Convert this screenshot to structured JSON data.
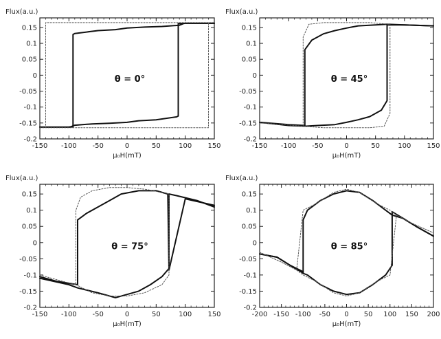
{
  "chart_data": [
    {
      "type": "line",
      "ylabel": "Flux(a.u.)",
      "xlabel": "μ₀H(mT)",
      "annotation": "θ = 0°",
      "xlim": [
        -150,
        150
      ],
      "ylim": [
        -0.2,
        0.18
      ],
      "xticks": [
        -150,
        -100,
        -50,
        0,
        50,
        100,
        150
      ],
      "yticks": [
        0.15,
        0.1,
        0.05,
        0,
        -0.05,
        -0.1,
        -0.15,
        -0.2
      ],
      "series": [
        {
          "style": "solid",
          "x": [
            -150,
            -100,
            -93,
            -93,
            -90,
            -50,
            -20,
            0,
            30,
            60,
            90,
            97,
            100,
            150
          ],
          "y": [
            -0.163,
            -0.163,
            -0.162,
            0.128,
            0.131,
            0.14,
            0.143,
            0.148,
            0.151,
            0.153,
            0.157,
            0.162,
            0.163,
            0.163
          ]
        },
        {
          "style": "solid",
          "x": [
            150,
            100,
            88,
            88,
            85,
            50,
            20,
            0,
            -30,
            -60,
            -90,
            -97,
            -100,
            -150
          ],
          "y": [
            0.163,
            0.163,
            0.162,
            -0.128,
            -0.131,
            -0.14,
            -0.143,
            -0.148,
            -0.151,
            -0.153,
            -0.157,
            -0.162,
            -0.163,
            -0.163
          ]
        },
        {
          "style": "dotted",
          "x": [
            -150,
            -140,
            -140,
            150,
            150,
            140,
            140,
            -150
          ],
          "y": [
            -0.165,
            -0.165,
            0.165,
            0.165,
            0.165,
            0.165,
            -0.165,
            -0.165
          ]
        }
      ]
    },
    {
      "type": "line",
      "ylabel": "Flux(a.u.)",
      "xlabel": "μ₀H(mT)",
      "annotation": "θ = 45°",
      "xlim": [
        -150,
        150
      ],
      "ylim": [
        -0.2,
        0.18
      ],
      "xticks": [
        -150,
        -100,
        -50,
        0,
        50,
        100,
        150
      ],
      "yticks": [
        0.15,
        0.1,
        0.05,
        0,
        -0.05,
        -0.1,
        -0.15,
        -0.2
      ],
      "series": [
        {
          "style": "solid",
          "x": [
            -150,
            -100,
            -72,
            -72,
            -60,
            -40,
            -20,
            0,
            20,
            50,
            70,
            100,
            150
          ],
          "y": [
            -0.148,
            -0.155,
            -0.158,
            0.08,
            0.11,
            0.13,
            0.14,
            0.148,
            0.155,
            0.158,
            0.16,
            0.158,
            0.155
          ]
        },
        {
          "style": "solid",
          "x": [
            150,
            100,
            70,
            70,
            60,
            40,
            20,
            0,
            -20,
            -50,
            -70,
            -100,
            -150
          ],
          "y": [
            0.155,
            0.158,
            0.158,
            -0.08,
            -0.11,
            -0.13,
            -0.14,
            -0.148,
            -0.155,
            -0.158,
            -0.16,
            -0.158,
            -0.148
          ]
        },
        {
          "style": "dotted",
          "x": [
            -150,
            -90,
            -75,
            -75,
            -65,
            -40,
            0,
            40,
            75,
            75,
            65,
            40,
            0,
            -40,
            -75
          ],
          "y": [
            -0.15,
            -0.158,
            -0.16,
            0.12,
            0.16,
            0.165,
            0.165,
            0.165,
            0.16,
            -0.12,
            -0.16,
            -0.165,
            -0.165,
            -0.165,
            -0.16
          ]
        }
      ]
    },
    {
      "type": "line",
      "ylabel": "Flux(a.u.)",
      "xlabel": "μ₀H(mT)",
      "annotation": "θ = 75°",
      "xlim": [
        -150,
        150
      ],
      "ylim": [
        -0.2,
        0.18
      ],
      "xticks": [
        -150,
        -100,
        -50,
        0,
        50,
        100,
        150
      ],
      "yticks": [
        0.15,
        0.1,
        0.05,
        0,
        -0.05,
        -0.1,
        -0.15,
        -0.2
      ],
      "series": [
        {
          "style": "solid",
          "x": [
            -150,
            -120,
            -85,
            -85,
            -70,
            -50,
            -30,
            -10,
            20,
            50,
            70,
            72,
            100,
            150
          ],
          "y": [
            -0.105,
            -0.12,
            -0.13,
            0.07,
            0.09,
            0.11,
            0.13,
            0.15,
            0.16,
            0.16,
            0.15,
            -0.085,
            0.135,
            0.115
          ]
        },
        {
          "style": "solid",
          "x": [
            150,
            120,
            85,
            72,
            72,
            60,
            40,
            20,
            0,
            -20,
            -50,
            -85,
            -100,
            -150
          ],
          "y": [
            0.11,
            0.13,
            0.145,
            0.15,
            -0.08,
            -0.105,
            -0.13,
            -0.15,
            -0.16,
            -0.17,
            -0.155,
            -0.14,
            -0.13,
            -0.11
          ]
        },
        {
          "style": "dotted",
          "x": [
            -150,
            -110,
            -88,
            -88,
            -80,
            -60,
            -30,
            0,
            30,
            60,
            72,
            72,
            60,
            30,
            0,
            -30,
            -60,
            -88
          ],
          "y": [
            -0.1,
            -0.12,
            -0.13,
            0.1,
            0.14,
            0.16,
            0.17,
            0.17,
            0.165,
            0.155,
            0.15,
            -0.1,
            -0.13,
            -0.155,
            -0.165,
            -0.165,
            -0.155,
            -0.13
          ]
        }
      ]
    },
    {
      "type": "line",
      "ylabel": "Flux(a.u.)",
      "xlabel": "μ₀H(mT)",
      "annotation": "θ = 85°",
      "xlim": [
        -200,
        200
      ],
      "ylim": [
        -0.2,
        0.18
      ],
      "xticks": [
        -200,
        -150,
        -100,
        -50,
        0,
        50,
        100,
        150,
        200
      ],
      "yticks": [
        0.15,
        0.1,
        0.05,
        0,
        -0.05,
        -0.1,
        -0.15,
        -0.2
      ],
      "series": [
        {
          "style": "solid",
          "x": [
            -200,
            -160,
            -130,
            -105,
            -100,
            -100,
            -90,
            -60,
            -30,
            0,
            30,
            60,
            90,
            105,
            105,
            130,
            160,
            200
          ],
          "y": [
            -0.035,
            -0.045,
            -0.07,
            -0.09,
            -0.095,
            0.07,
            0.1,
            0.13,
            0.15,
            0.16,
            0.155,
            0.13,
            0.1,
            0.085,
            0.095,
            0.075,
            0.05,
            0.02
          ]
        },
        {
          "style": "solid",
          "x": [
            200,
            160,
            130,
            105,
            105,
            90,
            60,
            30,
            0,
            -30,
            -60,
            -90,
            -100,
            -100,
            -130,
            -160,
            -200
          ],
          "y": [
            0.02,
            0.05,
            0.075,
            0.085,
            -0.07,
            -0.1,
            -0.13,
            -0.155,
            -0.16,
            -0.15,
            -0.13,
            -0.1,
            -0.095,
            -0.09,
            -0.07,
            -0.045,
            -0.035
          ]
        },
        {
          "style": "dotted",
          "x": [
            -200,
            -150,
            -115,
            -100,
            -70,
            -30,
            0,
            30,
            70,
            100,
            115,
            150,
            200,
            150,
            115,
            100,
            70,
            30,
            0,
            -30,
            -70,
            -100,
            -115,
            -150,
            -200
          ],
          "y": [
            -0.03,
            -0.06,
            -0.085,
            -0.1,
            -0.12,
            -0.155,
            -0.165,
            -0.155,
            -0.12,
            -0.1,
            0.085,
            0.06,
            0.03,
            0.06,
            0.085,
            0.1,
            0.12,
            0.155,
            0.165,
            0.155,
            0.12,
            0.1,
            -0.085,
            -0.06,
            -0.03
          ]
        }
      ]
    }
  ]
}
